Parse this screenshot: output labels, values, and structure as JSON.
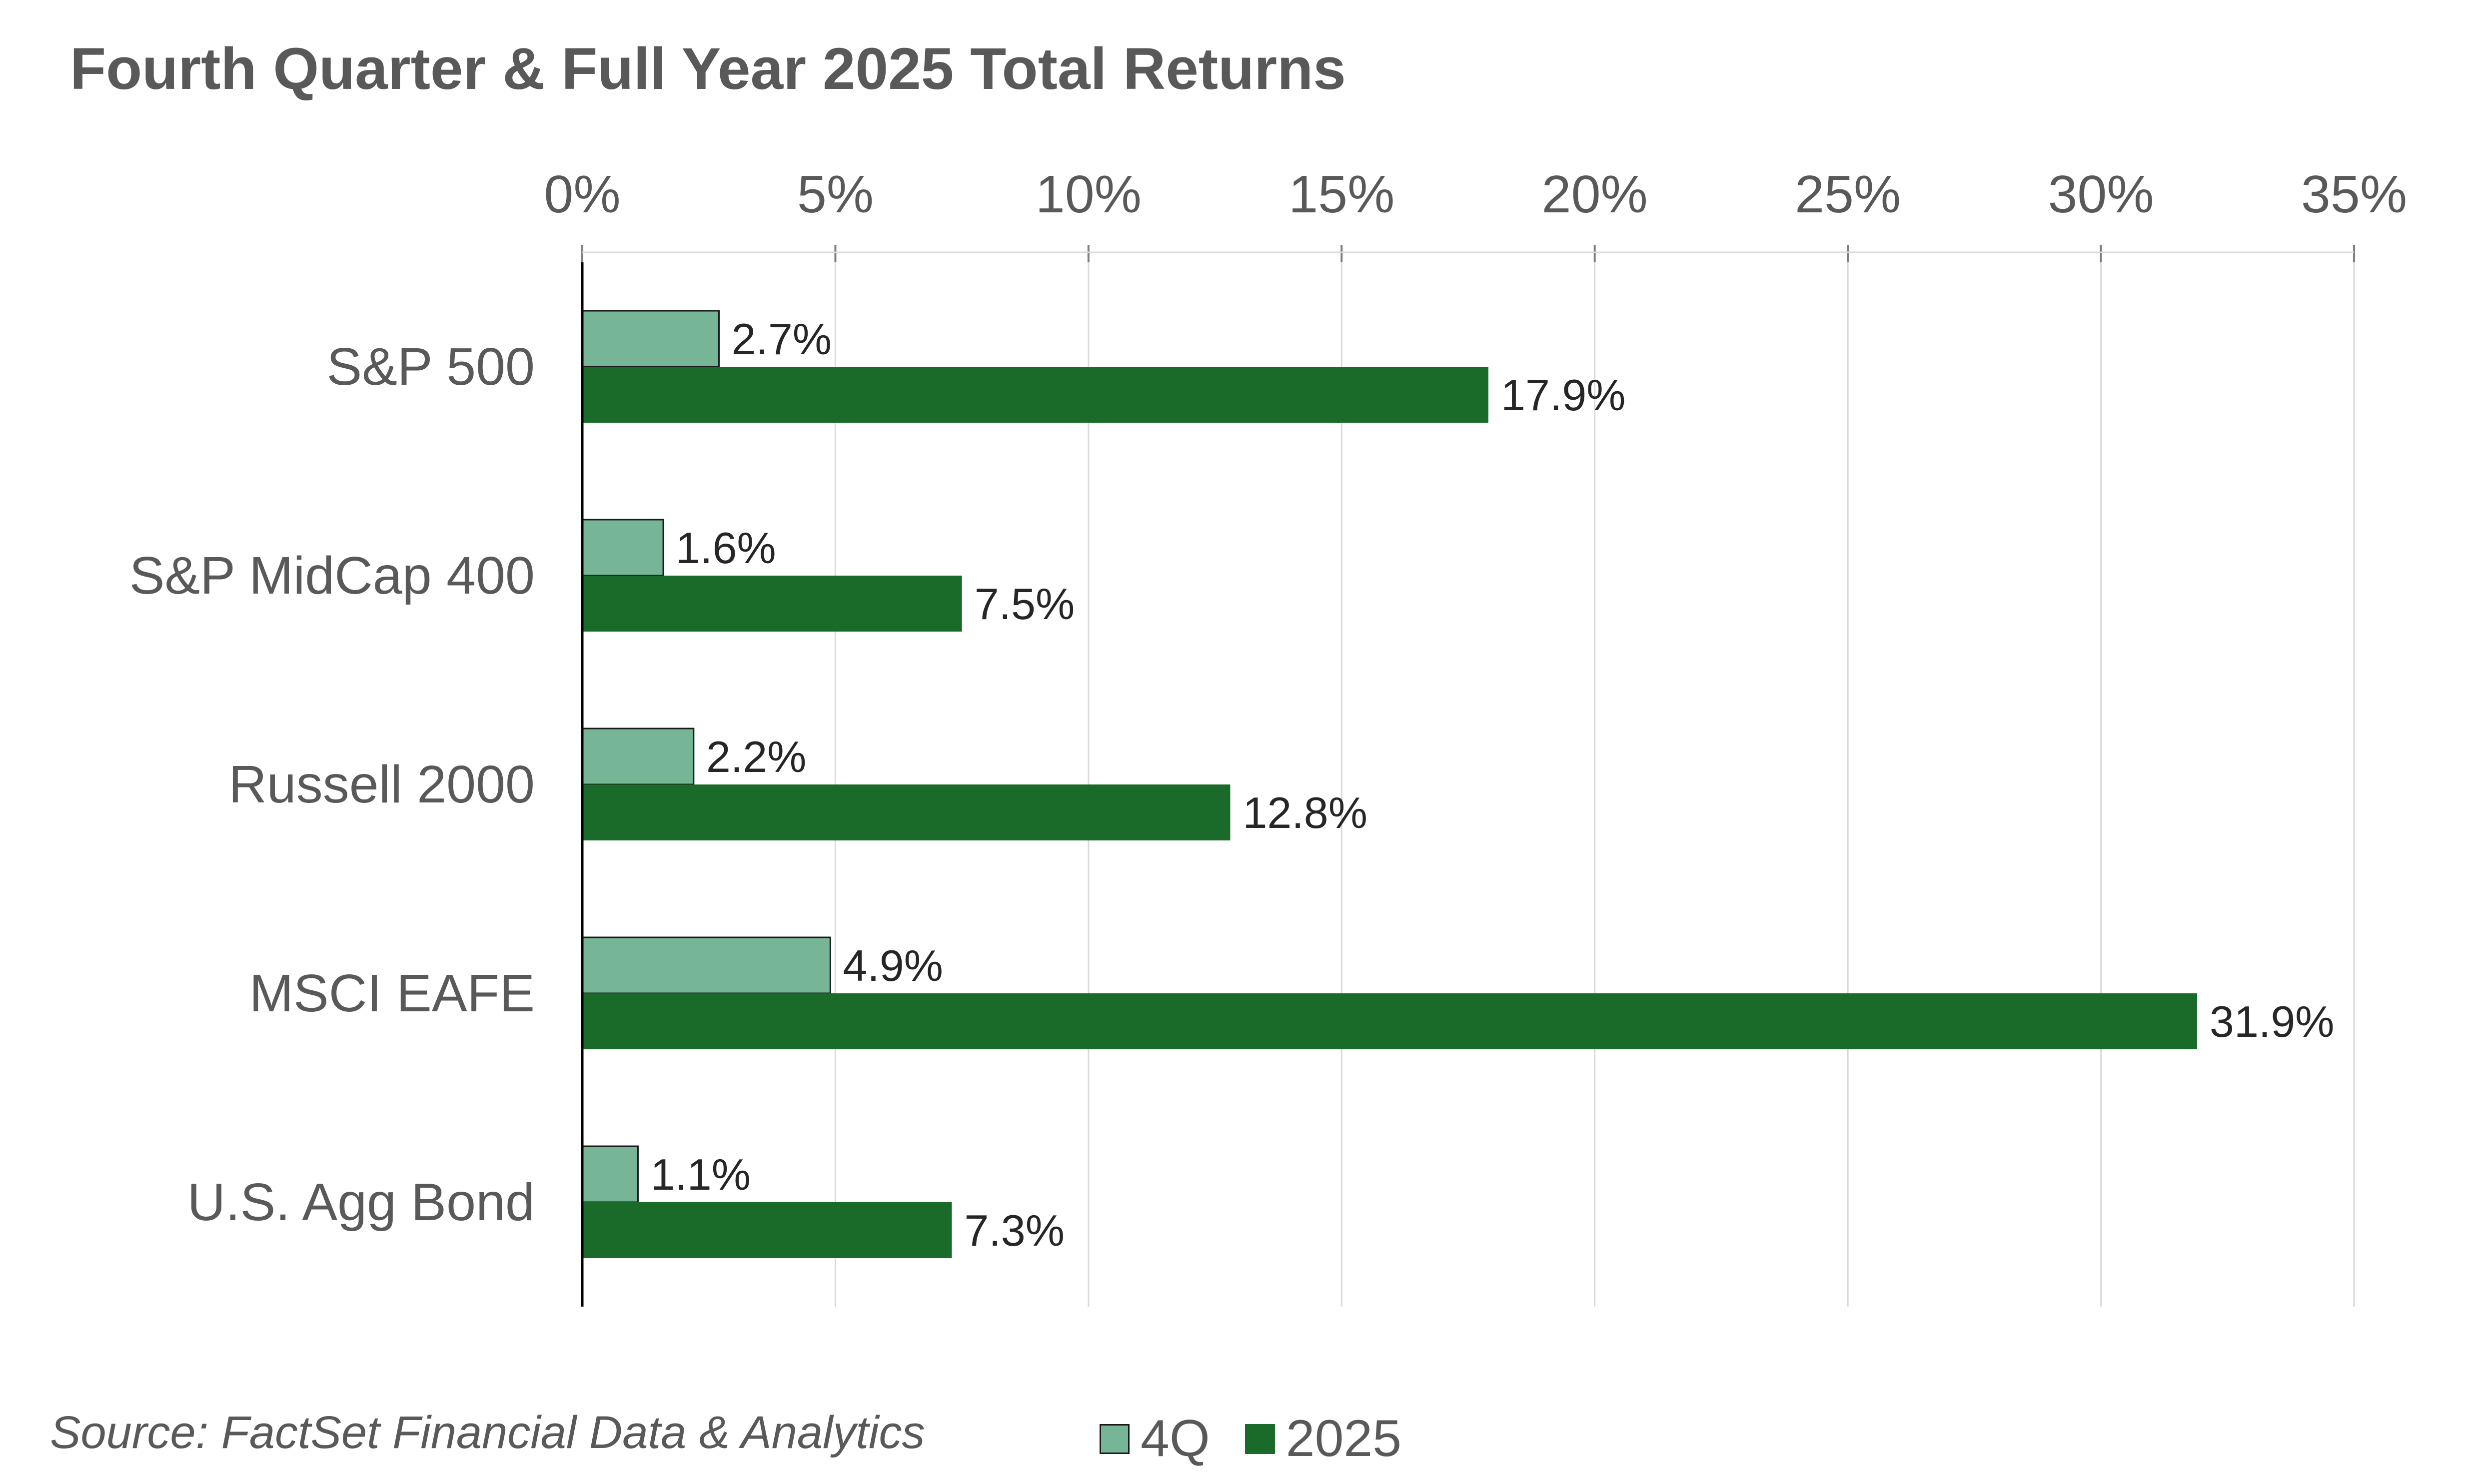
{
  "colors": {
    "q4": "#76b595",
    "fy": "#1a6b29",
    "grid": "#d9d9d9",
    "axis": "#000000",
    "text": "#595959"
  },
  "chart_data": {
    "type": "bar",
    "orientation": "horizontal",
    "title": "Fourth Quarter & Full Year 2025 Total Returns",
    "categories": [
      "S&P 500",
      "S&P MidCap 400",
      "Russell 2000",
      "MSCI EAFE",
      "U.S. Agg Bond"
    ],
    "series": [
      {
        "name": "4Q",
        "values": [
          2.7,
          1.6,
          2.2,
          4.9,
          1.1
        ],
        "labels": [
          "2.7%",
          "1.6%",
          "2.2%",
          "4.9%",
          "1.1%"
        ]
      },
      {
        "name": "2025",
        "values": [
          17.9,
          7.5,
          12.8,
          31.9,
          7.3
        ],
        "labels": [
          "17.9%",
          "7.5%",
          "12.8%",
          "31.9%",
          "7.3%"
        ]
      }
    ],
    "xlim": [
      0,
      35
    ],
    "xticks": [
      0,
      5,
      10,
      15,
      20,
      25,
      30,
      35
    ],
    "xtick_labels": [
      "0%",
      "5%",
      "10%",
      "15%",
      "20%",
      "25%",
      "30%",
      "35%"
    ],
    "x_axis_position": "top",
    "grid": true,
    "legend_position": "bottom"
  },
  "source": "Source: FactSet Financial Data & Analytics"
}
